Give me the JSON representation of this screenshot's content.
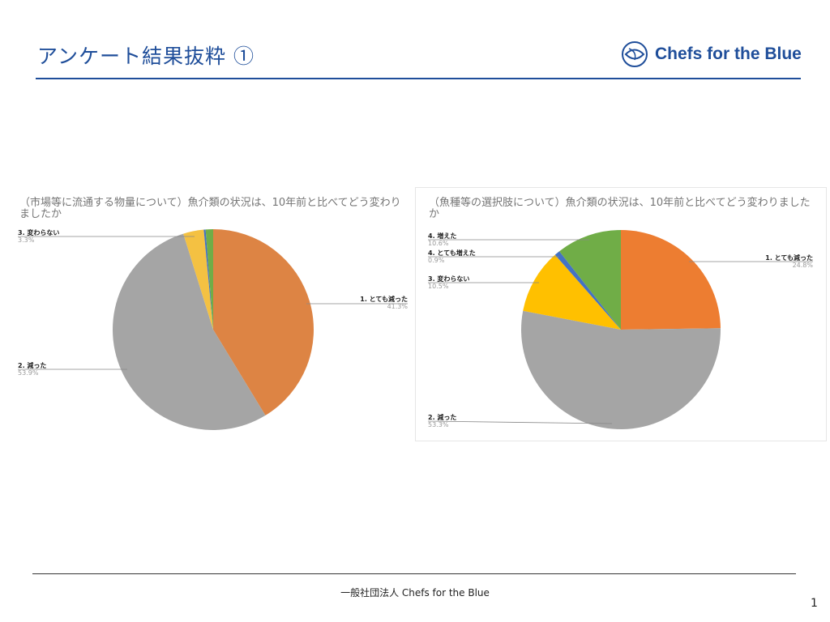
{
  "header": {
    "title": "アンケート結果抜粋 ①",
    "logo_text": "Chefs for the Blue"
  },
  "footer": {
    "organization": "一般社団法人 Chefs for the Blue",
    "page_number": "1"
  },
  "chart_data": [
    {
      "type": "pie",
      "title": "（市場等に流通する物量について）魚介類の状況は、10年前と比べてどう変わりましたか",
      "start_angle": "top, clockwise",
      "slices": [
        {
          "label": "1. とても減った",
          "value": 41.3,
          "display": "41.3%",
          "color": "#dd8444"
        },
        {
          "label": "2. 減った",
          "value": 53.9,
          "display": "53.9%",
          "color": "#a5a5a5"
        },
        {
          "label": "3. 変わらない",
          "value": 3.3,
          "display": "3.3%",
          "color": "#f4c142"
        },
        {
          "label": "",
          "value": 0.3,
          "display": "",
          "color": "#4472c4"
        },
        {
          "label": "",
          "value": 1.2,
          "display": "",
          "color": "#70ad47"
        }
      ]
    },
    {
      "type": "pie",
      "title": "（魚種等の選択肢について）魚介類の状況は、10年前と比べてどう変わりましたか",
      "start_angle": "top, clockwise",
      "slices": [
        {
          "label": "1. とても減った",
          "value": 24.8,
          "display": "24.8%",
          "color": "#ed7d31"
        },
        {
          "label": "2. 減った",
          "value": 53.3,
          "display": "53.3%",
          "color": "#a5a5a5"
        },
        {
          "label": "3. 変わらない",
          "value": 10.5,
          "display": "10.5%",
          "color": "#ffc000"
        },
        {
          "label": "4. とても増えた",
          "value": 0.9,
          "display": "0.9%",
          "color": "#4472c4"
        },
        {
          "label": "4. 増えた",
          "value": 10.6,
          "display": "10.6%",
          "color": "#70ad47"
        }
      ]
    }
  ]
}
